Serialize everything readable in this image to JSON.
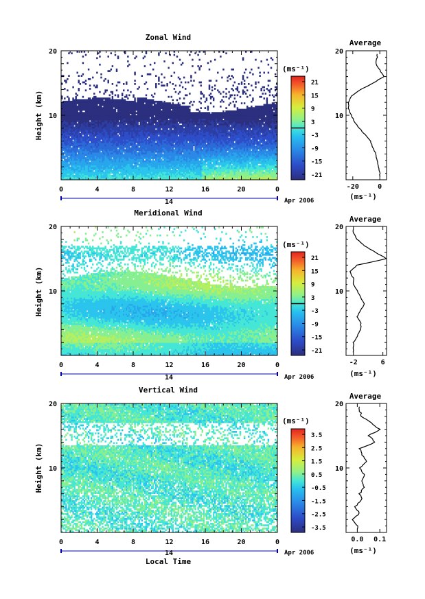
{
  "figure": {
    "xlabel": "Local Time",
    "ylabel": "Height (km)"
  },
  "chart_data": [
    {
      "type": "heatmap",
      "title": "Zonal Wind",
      "xlabel": "",
      "ylabel": "Height (km)",
      "x_ticks": [
        "0",
        "4",
        "8",
        "12",
        "16",
        "20",
        "0"
      ],
      "day_label": "14",
      "date_label": "Apr 2006",
      "y_ticks": [
        10,
        20
      ],
      "ylim": [
        0,
        20
      ],
      "colorbar": {
        "unit": "(ms⁻¹)",
        "ticks": [
          "21",
          "15",
          "9",
          "3",
          "-3",
          "-9",
          "-15",
          "-21"
        ],
        "range": [
          -21,
          21
        ]
      },
      "profile": {
        "title": "Average",
        "x_ticks": [
          "-20",
          "0"
        ],
        "xlim": [
          -25,
          5
        ],
        "xunit": "(ms⁻¹)",
        "y_ticks": [
          10,
          20
        ],
        "heights": [
          1,
          2,
          3,
          4,
          5,
          6,
          7,
          8,
          9,
          10,
          11,
          12,
          13,
          14,
          15,
          16,
          17,
          18,
          19
        ],
        "values": [
          0,
          -1,
          -2,
          -3,
          -5,
          -7,
          -11,
          -15,
          -19,
          -21,
          -23,
          -23,
          -21,
          -14,
          -5,
          3,
          0,
          -3,
          -2
        ]
      }
    },
    {
      "type": "heatmap",
      "title": "Meridional Wind",
      "xlabel": "",
      "ylabel": "Height (km)",
      "x_ticks": [
        "0",
        "4",
        "8",
        "12",
        "16",
        "20",
        "0"
      ],
      "day_label": "14",
      "date_label": "Apr 2006",
      "y_ticks": [
        10,
        20
      ],
      "ylim": [
        0,
        20
      ],
      "colorbar": {
        "unit": "(ms⁻¹)",
        "ticks": [
          "21",
          "15",
          "9",
          "3",
          "-3",
          "-9",
          "-15",
          "-21"
        ],
        "range": [
          -21,
          21
        ]
      },
      "profile": {
        "title": "Average",
        "x_ticks": [
          "-2",
          "6"
        ],
        "xlim": [
          -4,
          7
        ],
        "xunit": "(ms⁻¹)",
        "y_ticks": [
          10,
          20
        ],
        "heights": [
          1,
          2,
          3,
          4,
          5,
          6,
          7,
          8,
          9,
          10,
          11,
          12,
          13,
          14,
          15,
          16,
          17,
          18,
          19
        ],
        "values": [
          -2,
          -2,
          -1,
          0,
          0,
          -1,
          0,
          1,
          0,
          -1,
          -2,
          -2,
          -3,
          -1,
          7,
          4,
          1,
          -1,
          -2
        ]
      }
    },
    {
      "type": "heatmap",
      "title": "Vertical Wind",
      "xlabel": "Local Time",
      "ylabel": "Height (km)",
      "x_ticks": [
        "0",
        "4",
        "8",
        "12",
        "16",
        "20",
        "0"
      ],
      "day_label": "14",
      "date_label": "Apr 2006",
      "y_ticks": [
        10,
        20
      ],
      "ylim": [
        0,
        20
      ],
      "colorbar": {
        "unit": "(ms⁻¹)",
        "ticks": [
          "3.5",
          "2.5",
          "1.5",
          "0.5",
          "-0.5",
          "-1.5",
          "-2.5",
          "-3.5"
        ],
        "range": [
          -3.5,
          3.5
        ]
      },
      "profile": {
        "title": "Average",
        "x_ticks": [
          "0.0",
          "0.1"
        ],
        "xlim": [
          -0.05,
          0.13
        ],
        "xunit": "(ms⁻¹)",
        "y_ticks": [
          10,
          20
        ],
        "heights": [
          1,
          2,
          3,
          4,
          5,
          6,
          7,
          8,
          9,
          10,
          11,
          12,
          13,
          14,
          15,
          16,
          17,
          18,
          19
        ],
        "values": [
          0.0,
          -0.02,
          0.01,
          -0.01,
          0.02,
          0.01,
          0.03,
          0.02,
          0.03,
          0.01,
          0.04,
          0.02,
          0.01,
          0.08,
          0.05,
          0.1,
          0.06,
          0.02,
          0.01
        ]
      }
    }
  ]
}
